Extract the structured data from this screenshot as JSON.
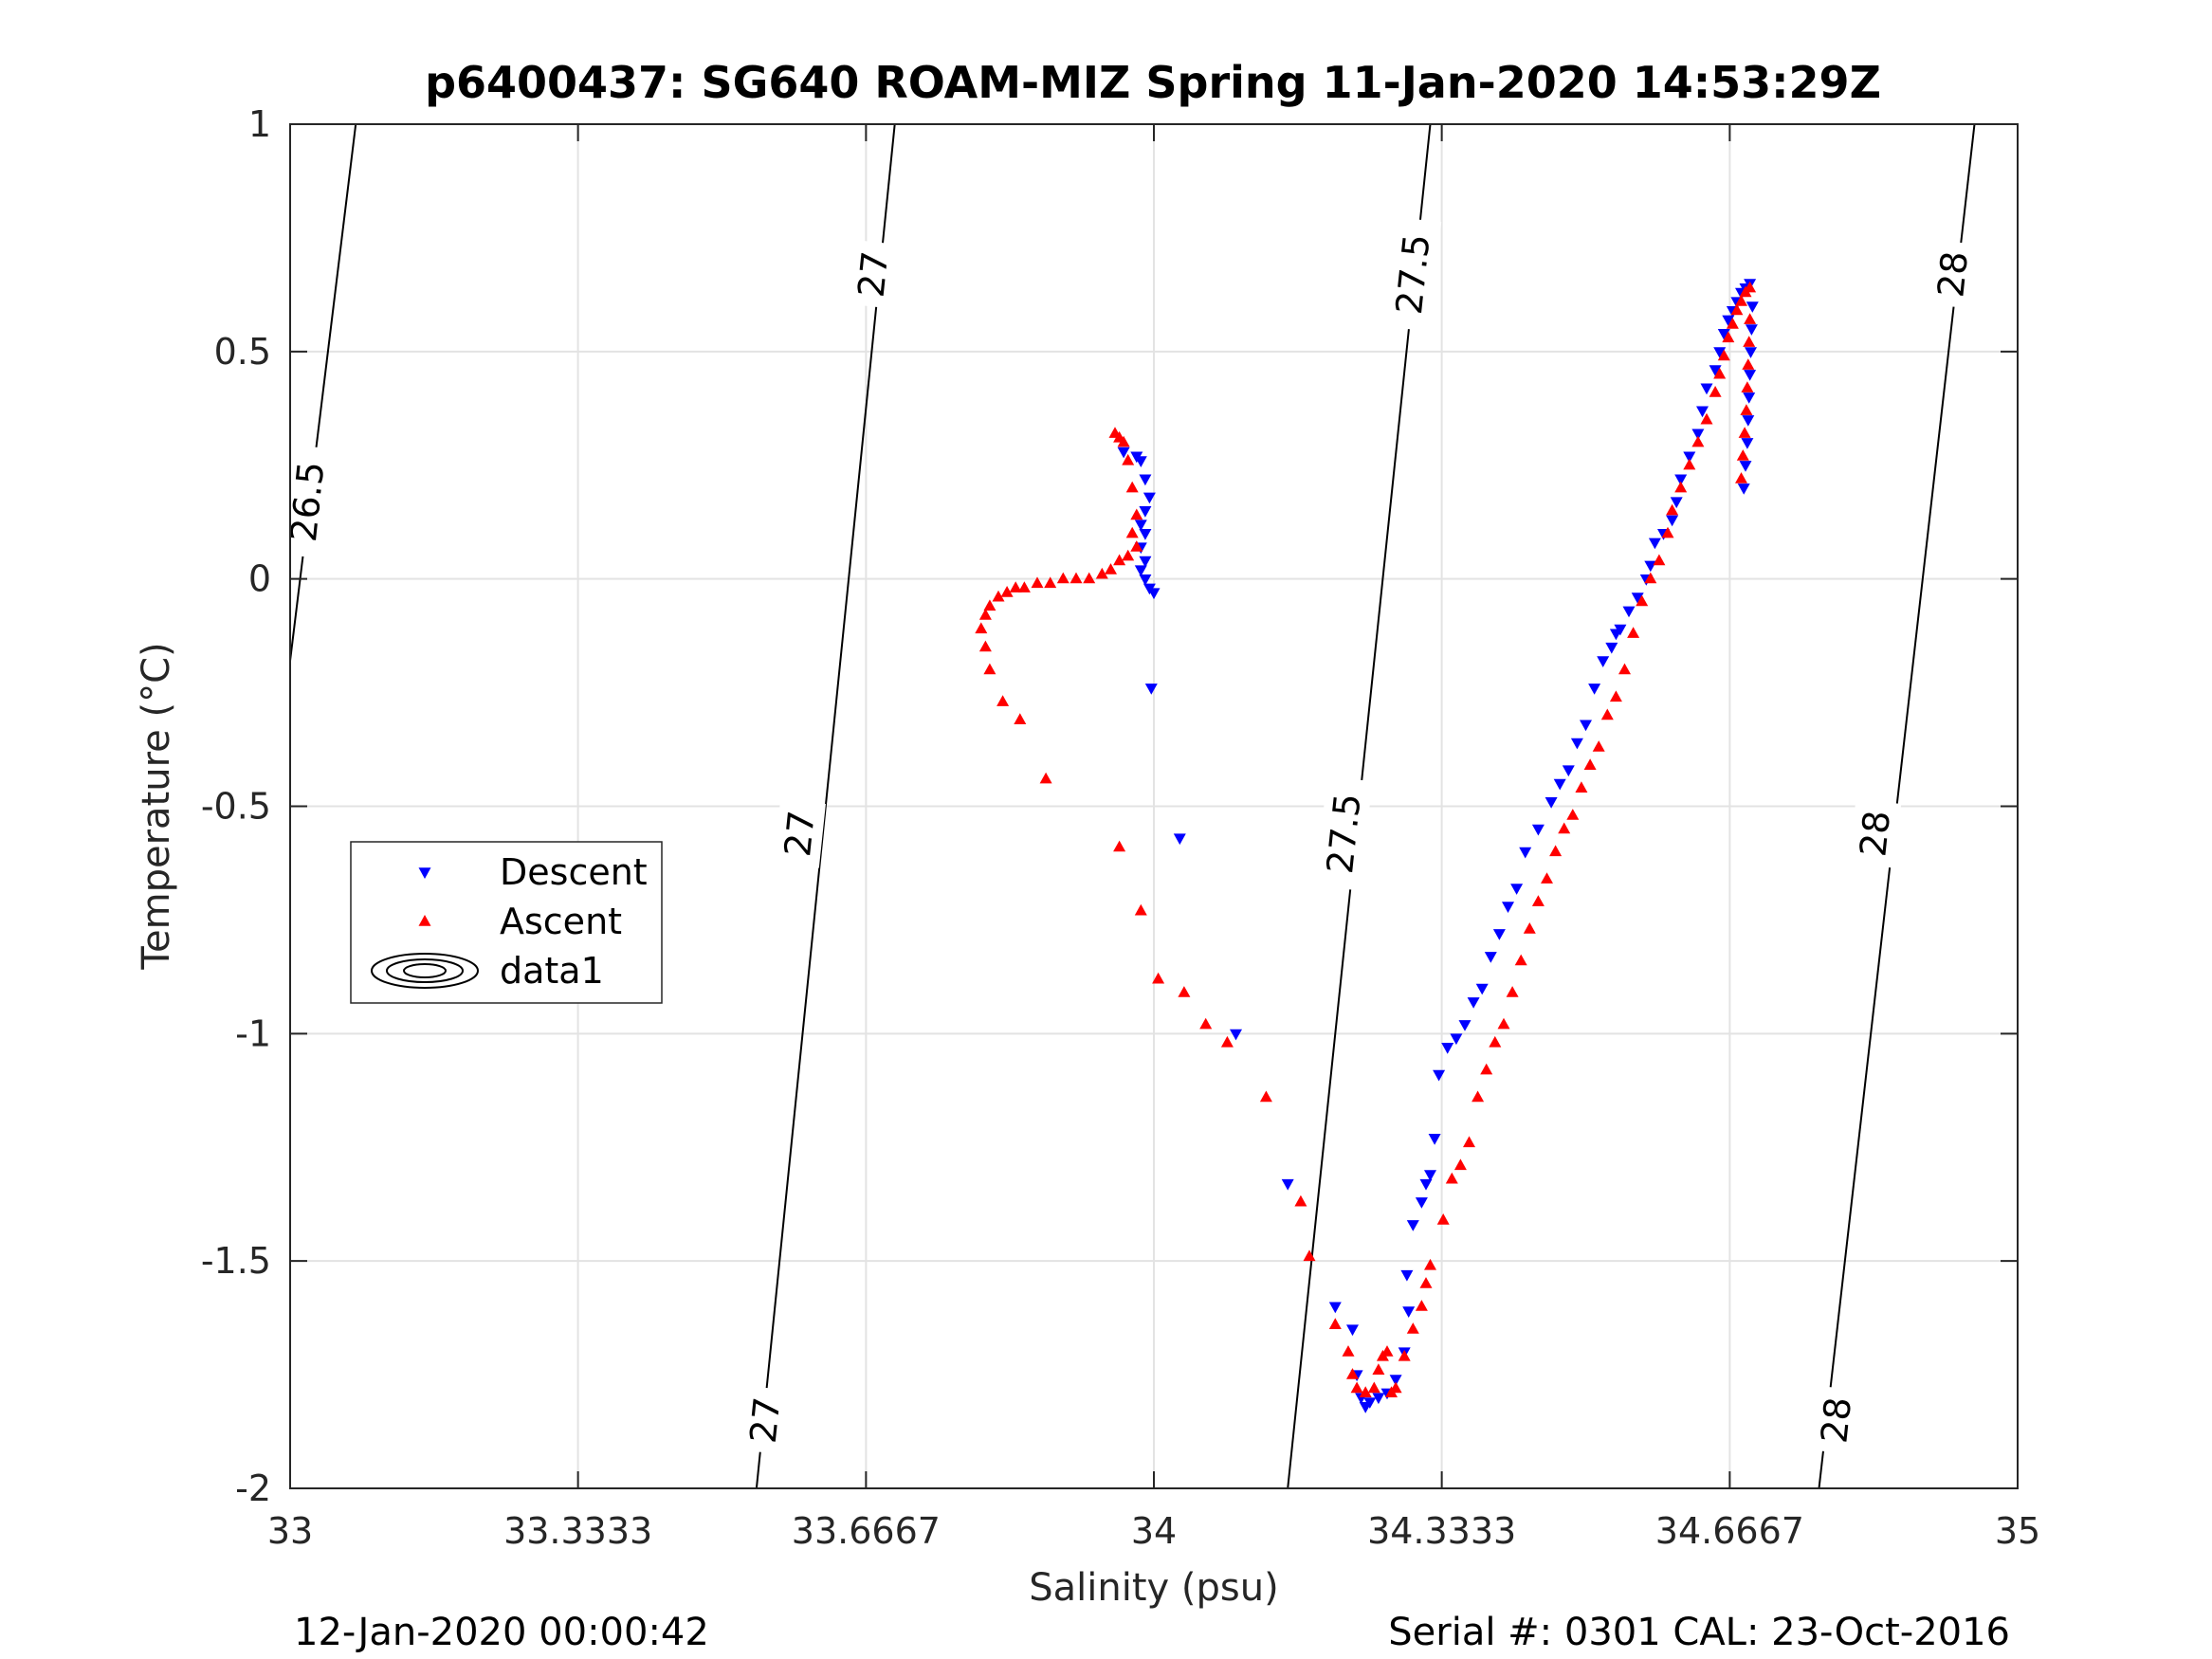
{
  "chart_data": {
    "type": "scatter",
    "title": "p6400437: SG640 ROAM-MIZ Spring 11-Jan-2020 14:53:29Z",
    "xlabel": "Salinity (psu)",
    "ylabel": "Temperature (°C)",
    "xlim": [
      33,
      35
    ],
    "ylim": [
      -2,
      1
    ],
    "xticks": [
      33,
      33.3333,
      33.6667,
      34,
      34.3333,
      34.6667,
      35
    ],
    "xtick_labels": [
      "33",
      "33.3333",
      "33.6667",
      "34",
      "34.3333",
      "34.6667",
      "35"
    ],
    "yticks": [
      -2,
      -1.5,
      -1,
      -0.5,
      0,
      0.5,
      1
    ],
    "ytick_labels": [
      "-2",
      "-1.5",
      "-1",
      "-0.5",
      "0",
      "0.5",
      "1"
    ],
    "grid": true,
    "legend_position": "left-middle",
    "footer_left": "12-Jan-2020 00:00:42",
    "footer_right": "Serial #: 0301  CAL: 23-Oct-2016",
    "contours": [
      {
        "name": "data1",
        "level_label": "26.5",
        "points": [
          [
            33.076,
            1.0
          ],
          [
            33.0,
            -0.18
          ]
        ]
      },
      {
        "name": "data1",
        "level_label": "27",
        "points": [
          [
            33.7,
            1.0
          ],
          [
            33.54,
            -2.0
          ]
        ]
      },
      {
        "name": "data1",
        "level_label": "27.5",
        "points": [
          [
            34.32,
            1.0
          ],
          [
            34.155,
            -2.0
          ]
        ]
      },
      {
        "name": "data1",
        "level_label": "28",
        "points": [
          [
            34.95,
            1.0
          ],
          [
            34.77,
            -2.0
          ]
        ]
      }
    ],
    "contour_labels": [
      {
        "text": "26.5",
        "x": 33.02,
        "y": 0.17
      },
      {
        "text": "27",
        "x": 33.675,
        "y": 0.67
      },
      {
        "text": "27",
        "x": 33.59,
        "y": -0.56
      },
      {
        "text": "27",
        "x": 33.55,
        "y": -1.85
      },
      {
        "text": "27.5",
        "x": 34.3,
        "y": 0.67
      },
      {
        "text": "27.5",
        "x": 34.22,
        "y": -0.56
      },
      {
        "text": "28",
        "x": 34.925,
        "y": 0.67
      },
      {
        "text": "28",
        "x": 34.835,
        "y": -0.56
      },
      {
        "text": "28",
        "x": 34.79,
        "y": -1.85
      }
    ],
    "series": [
      {
        "name": "Descent",
        "color": "#0000ff",
        "marker": "triangle-down",
        "points": [
          [
            33.965,
            0.28
          ],
          [
            33.98,
            0.27
          ],
          [
            33.985,
            0.26
          ],
          [
            33.99,
            0.22
          ],
          [
            33.995,
            0.18
          ],
          [
            33.99,
            0.15
          ],
          [
            33.985,
            0.12
          ],
          [
            33.99,
            0.1
          ],
          [
            33.985,
            0.07
          ],
          [
            33.99,
            0.04
          ],
          [
            33.985,
            0.02
          ],
          [
            33.99,
            0.0
          ],
          [
            33.995,
            -0.02
          ],
          [
            34.0,
            -0.03
          ],
          [
            33.997,
            -0.24
          ],
          [
            34.03,
            -0.57
          ],
          [
            34.095,
            -1.0
          ],
          [
            34.155,
            -1.33
          ],
          [
            34.21,
            -1.6
          ],
          [
            34.23,
            -1.65
          ],
          [
            34.235,
            -1.75
          ],
          [
            34.24,
            -1.8
          ],
          [
            34.245,
            -1.82
          ],
          [
            34.25,
            -1.81
          ],
          [
            34.26,
            -1.8
          ],
          [
            34.27,
            -1.79
          ],
          [
            34.28,
            -1.76
          ],
          [
            34.29,
            -1.7
          ],
          [
            34.295,
            -1.61
          ],
          [
            34.293,
            -1.53
          ],
          [
            34.3,
            -1.42
          ],
          [
            34.31,
            -1.37
          ],
          [
            34.315,
            -1.33
          ],
          [
            34.32,
            -1.31
          ],
          [
            34.325,
            -1.23
          ],
          [
            34.33,
            -1.09
          ],
          [
            34.34,
            -1.03
          ],
          [
            34.35,
            -1.01
          ],
          [
            34.36,
            -0.98
          ],
          [
            34.37,
            -0.93
          ],
          [
            34.38,
            -0.9
          ],
          [
            34.39,
            -0.83
          ],
          [
            34.4,
            -0.78
          ],
          [
            34.41,
            -0.72
          ],
          [
            34.42,
            -0.68
          ],
          [
            34.43,
            -0.6
          ],
          [
            34.445,
            -0.55
          ],
          [
            34.46,
            -0.49
          ],
          [
            34.47,
            -0.45
          ],
          [
            34.48,
            -0.42
          ],
          [
            34.49,
            -0.36
          ],
          [
            34.5,
            -0.32
          ],
          [
            34.51,
            -0.24
          ],
          [
            34.52,
            -0.18
          ],
          [
            34.53,
            -0.15
          ],
          [
            34.535,
            -0.12
          ],
          [
            34.54,
            -0.11
          ],
          [
            34.55,
            -0.07
          ],
          [
            34.56,
            -0.04
          ],
          [
            34.57,
            0.0
          ],
          [
            34.575,
            0.03
          ],
          [
            34.58,
            0.08
          ],
          [
            34.59,
            0.1
          ],
          [
            34.6,
            0.13
          ],
          [
            34.605,
            0.17
          ],
          [
            34.61,
            0.22
          ],
          [
            34.62,
            0.27
          ],
          [
            34.63,
            0.32
          ],
          [
            34.635,
            0.37
          ],
          [
            34.64,
            0.42
          ],
          [
            34.65,
            0.46
          ],
          [
            34.655,
            0.5
          ],
          [
            34.66,
            0.54
          ],
          [
            34.665,
            0.57
          ],
          [
            34.67,
            0.59
          ],
          [
            34.675,
            0.61
          ],
          [
            34.68,
            0.63
          ],
          [
            34.685,
            0.64
          ],
          [
            34.69,
            0.65
          ],
          [
            34.683,
            0.2
          ],
          [
            34.685,
            0.25
          ],
          [
            34.687,
            0.3
          ],
          [
            34.688,
            0.35
          ],
          [
            34.689,
            0.4
          ],
          [
            34.69,
            0.45
          ],
          [
            34.691,
            0.5
          ],
          [
            34.692,
            0.55
          ],
          [
            34.693,
            0.6
          ]
        ]
      },
      {
        "name": "Ascent",
        "color": "#ff0000",
        "marker": "triangle-up",
        "points": [
          [
            33.955,
            0.32
          ],
          [
            33.96,
            0.31
          ],
          [
            33.965,
            0.3
          ],
          [
            33.97,
            0.26
          ],
          [
            33.975,
            0.2
          ],
          [
            33.98,
            0.14
          ],
          [
            33.975,
            0.1
          ],
          [
            33.98,
            0.07
          ],
          [
            33.97,
            0.05
          ],
          [
            33.96,
            0.04
          ],
          [
            33.95,
            0.02
          ],
          [
            33.94,
            0.01
          ],
          [
            33.925,
            0.0
          ],
          [
            33.91,
            0.0
          ],
          [
            33.895,
            0.0
          ],
          [
            33.88,
            -0.01
          ],
          [
            33.865,
            -0.01
          ],
          [
            33.85,
            -0.02
          ],
          [
            33.84,
            -0.02
          ],
          [
            33.83,
            -0.03
          ],
          [
            33.82,
            -0.04
          ],
          [
            33.81,
            -0.06
          ],
          [
            33.805,
            -0.08
          ],
          [
            33.8,
            -0.11
          ],
          [
            33.805,
            -0.15
          ],
          [
            33.81,
            -0.2
          ],
          [
            33.825,
            -0.27
          ],
          [
            33.845,
            -0.31
          ],
          [
            33.875,
            -0.44
          ],
          [
            33.96,
            -0.59
          ],
          [
            33.985,
            -0.73
          ],
          [
            34.005,
            -0.88
          ],
          [
            34.035,
            -0.91
          ],
          [
            34.06,
            -0.98
          ],
          [
            34.085,
            -1.02
          ],
          [
            34.13,
            -1.14
          ],
          [
            34.17,
            -1.37
          ],
          [
            34.18,
            -1.49
          ],
          [
            34.21,
            -1.64
          ],
          [
            34.225,
            -1.7
          ],
          [
            34.23,
            -1.75
          ],
          [
            34.235,
            -1.78
          ],
          [
            34.245,
            -1.79
          ],
          [
            34.255,
            -1.78
          ],
          [
            34.26,
            -1.74
          ],
          [
            34.265,
            -1.71
          ],
          [
            34.27,
            -1.7
          ],
          [
            34.275,
            -1.79
          ],
          [
            34.28,
            -1.78
          ],
          [
            34.29,
            -1.71
          ],
          [
            34.3,
            -1.65
          ],
          [
            34.31,
            -1.6
          ],
          [
            34.315,
            -1.55
          ],
          [
            34.32,
            -1.51
          ],
          [
            34.335,
            -1.41
          ],
          [
            34.345,
            -1.32
          ],
          [
            34.355,
            -1.29
          ],
          [
            34.365,
            -1.24
          ],
          [
            34.375,
            -1.14
          ],
          [
            34.385,
            -1.08
          ],
          [
            34.395,
            -1.02
          ],
          [
            34.405,
            -0.98
          ],
          [
            34.415,
            -0.91
          ],
          [
            34.425,
            -0.84
          ],
          [
            34.435,
            -0.77
          ],
          [
            34.445,
            -0.71
          ],
          [
            34.455,
            -0.66
          ],
          [
            34.465,
            -0.6
          ],
          [
            34.475,
            -0.55
          ],
          [
            34.485,
            -0.52
          ],
          [
            34.495,
            -0.46
          ],
          [
            34.505,
            -0.41
          ],
          [
            34.515,
            -0.37
          ],
          [
            34.525,
            -0.3
          ],
          [
            34.535,
            -0.26
          ],
          [
            34.545,
            -0.2
          ],
          [
            34.555,
            -0.12
          ],
          [
            34.565,
            -0.05
          ],
          [
            34.575,
            0.0
          ],
          [
            34.585,
            0.04
          ],
          [
            34.595,
            0.1
          ],
          [
            34.6,
            0.15
          ],
          [
            34.61,
            0.2
          ],
          [
            34.62,
            0.25
          ],
          [
            34.63,
            0.3
          ],
          [
            34.64,
            0.35
          ],
          [
            34.65,
            0.41
          ],
          [
            34.655,
            0.45
          ],
          [
            34.66,
            0.49
          ],
          [
            34.665,
            0.53
          ],
          [
            34.67,
            0.56
          ],
          [
            34.675,
            0.59
          ],
          [
            34.68,
            0.61
          ],
          [
            34.685,
            0.63
          ],
          [
            34.69,
            0.64
          ],
          [
            34.68,
            0.22
          ],
          [
            34.682,
            0.27
          ],
          [
            34.684,
            0.32
          ],
          [
            34.686,
            0.37
          ],
          [
            34.687,
            0.42
          ],
          [
            34.688,
            0.47
          ],
          [
            34.689,
            0.52
          ],
          [
            34.69,
            0.57
          ]
        ]
      }
    ],
    "legend": [
      {
        "name": "Descent",
        "marker": "triangle-down",
        "color": "#0000ff"
      },
      {
        "name": "Ascent",
        "marker": "triangle-up",
        "color": "#ff0000"
      },
      {
        "name": "data1",
        "marker": "contour",
        "color": "#000000"
      }
    ]
  }
}
